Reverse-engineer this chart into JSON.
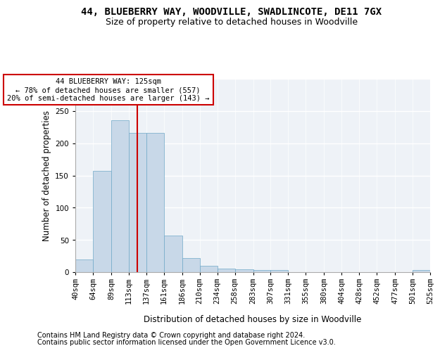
{
  "title": "44, BLUEBERRY WAY, WOODVILLE, SWADLINCOTE, DE11 7GX",
  "subtitle": "Size of property relative to detached houses in Woodville",
  "xlabel": "Distribution of detached houses by size in Woodville",
  "ylabel": "Number of detached properties",
  "footer_line1": "Contains HM Land Registry data © Crown copyright and database right 2024.",
  "footer_line2": "Contains public sector information licensed under the Open Government Licence v3.0.",
  "annotation_line1": "44 BLUEBERRY WAY: 125sqm",
  "annotation_line2": "← 78% of detached houses are smaller (557)",
  "annotation_line3": "20% of semi-detached houses are larger (143) →",
  "property_size": 125,
  "bin_edges": [
    40,
    64,
    89,
    113,
    137,
    161,
    186,
    210,
    234,
    258,
    283,
    307,
    331,
    355,
    380,
    404,
    428,
    452,
    477,
    501,
    525
  ],
  "bar_heights": [
    20,
    157,
    236,
    216,
    216,
    57,
    22,
    10,
    6,
    4,
    3,
    3,
    0,
    0,
    0,
    0,
    0,
    0,
    0,
    3
  ],
  "bar_color": "#c8d8e8",
  "bar_edge_color": "#6fa8c8",
  "vline_color": "#cc0000",
  "vline_x": 125,
  "annotation_box_color": "#ffffff",
  "annotation_box_edge": "#cc0000",
  "ylim": [
    0,
    300
  ],
  "yticks": [
    0,
    50,
    100,
    150,
    200,
    250,
    300
  ],
  "background_color": "#eef2f7",
  "grid_color": "#ffffff",
  "title_fontsize": 10,
  "subtitle_fontsize": 9,
  "axis_label_fontsize": 8.5,
  "tick_fontsize": 7.5,
  "footer_fontsize": 7
}
